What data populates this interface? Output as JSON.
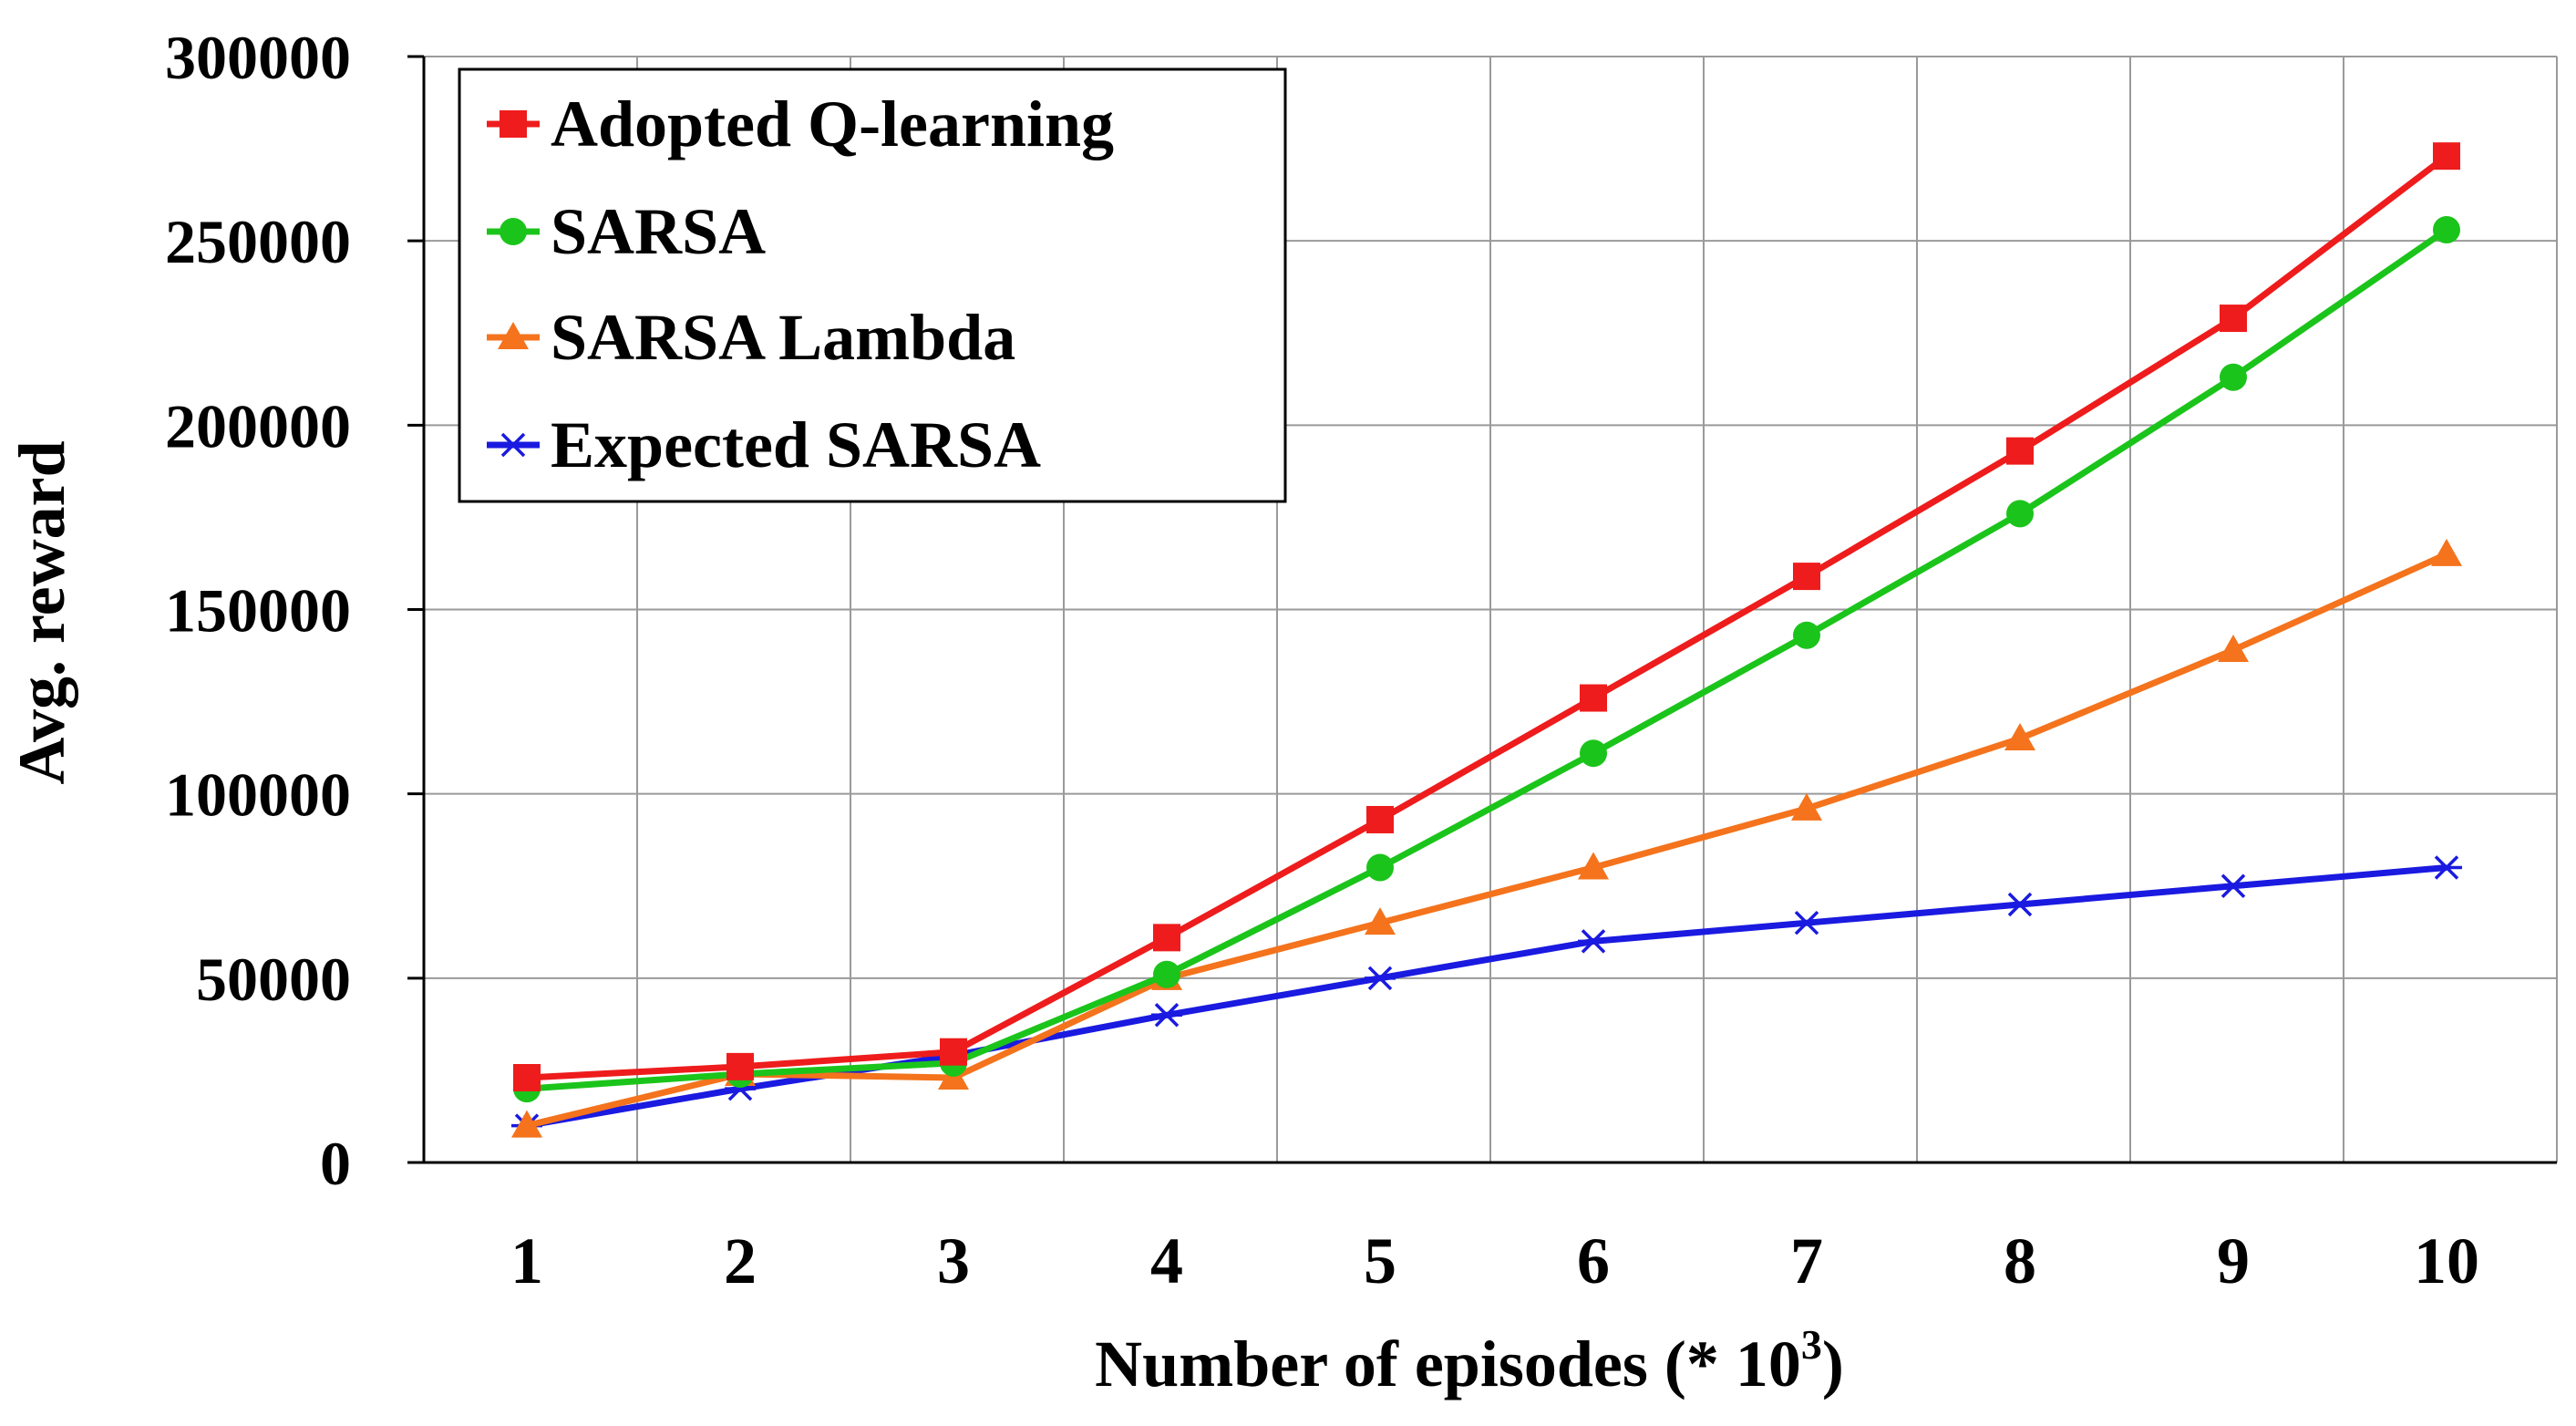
{
  "chart_data": {
    "type": "line",
    "title": "",
    "xlabel": "Number of episodes (* 10",
    "xlabel_sup": "3",
    "xlabel_close": ")",
    "ylabel": "Avg. reward",
    "ylim": [
      0,
      300000
    ],
    "yticks": [
      0,
      50000,
      100000,
      150000,
      200000,
      250000,
      300000
    ],
    "ytick_labels": [
      "0",
      "50000",
      "100000",
      "150000",
      "200000",
      "250000",
      "300000"
    ],
    "x": [
      1,
      2,
      3,
      4,
      5,
      6,
      7,
      8,
      9,
      10
    ],
    "xtick_labels": [
      "1",
      "2",
      "3",
      "4",
      "5",
      "6",
      "7",
      "8",
      "9",
      "10"
    ],
    "grid": true,
    "legend_position": "top-left",
    "series": [
      {
        "name": "Adopted Q-learning",
        "color": "#ee1c1c",
        "marker": "square",
        "values": [
          23000,
          26000,
          30000,
          61000,
          93000,
          126000,
          159000,
          193000,
          229000,
          273000
        ]
      },
      {
        "name": "SARSA",
        "color": "#1bc41b",
        "marker": "circle",
        "values": [
          20000,
          24000,
          27000,
          51000,
          80000,
          111000,
          143000,
          176000,
          213000,
          253000
        ]
      },
      {
        "name": "SARSA Lambda",
        "color": "#f4731c",
        "marker": "triangle",
        "values": [
          10000,
          24000,
          23000,
          50000,
          65000,
          80000,
          96000,
          115000,
          139000,
          165000
        ]
      },
      {
        "name": "Expected SARSA",
        "color": "#1a1ae0",
        "marker": "asterisk",
        "values": [
          10000,
          20000,
          29000,
          40000,
          50000,
          60000,
          65000,
          70000,
          75000,
          80000
        ]
      }
    ]
  }
}
